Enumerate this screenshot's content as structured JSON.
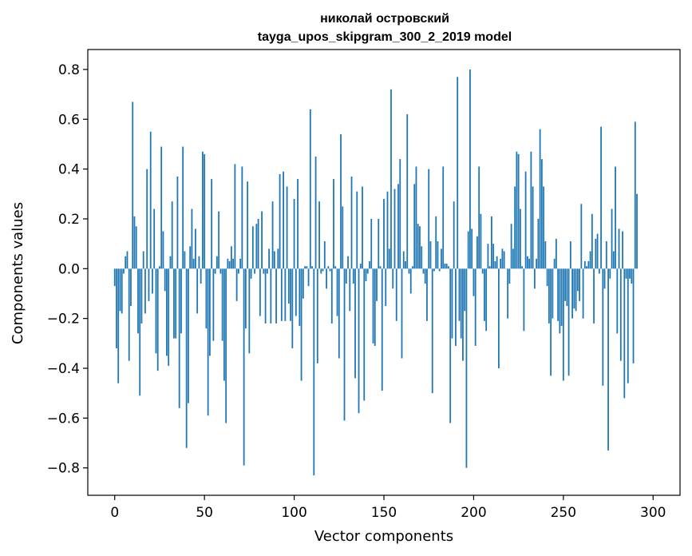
{
  "chart_data": {
    "type": "bar",
    "title_line1": "николай островский",
    "title_line2": "tayga_upos_skipgram_300_2_2019 model",
    "xlabel": "Vector components",
    "ylabel": "Components values",
    "xlim": [
      -15,
      315
    ],
    "ylim": [
      -0.91,
      0.88
    ],
    "xticks": [
      0,
      50,
      100,
      150,
      200,
      250,
      300
    ],
    "xtick_labels": [
      "0",
      "50",
      "100",
      "150",
      "200",
      "250",
      "300"
    ],
    "yticks": [
      -0.8,
      -0.6,
      -0.4,
      -0.2,
      0.0,
      0.2,
      0.4,
      0.6,
      0.8
    ],
    "ytick_labels": [
      "−0.8",
      "−0.6",
      "−0.4",
      "−0.2",
      "0.0",
      "0.2",
      "0.4",
      "0.6",
      "0.8"
    ],
    "grid": false,
    "bar_color": "#1f77b4",
    "values": [
      -0.07,
      -0.32,
      -0.46,
      -0.17,
      -0.18,
      -0.02,
      0.05,
      0.07,
      -0.37,
      -0.15,
      0.67,
      0.21,
      0.17,
      -0.26,
      -0.51,
      -0.22,
      0.07,
      -0.18,
      0.4,
      -0.13,
      0.55,
      -0.1,
      0.24,
      -0.34,
      -0.41,
      0.01,
      0.49,
      0.15,
      -0.09,
      -0.35,
      -0.39,
      0.05,
      0.27,
      -0.28,
      -0.28,
      0.37,
      -0.56,
      -0.26,
      0.49,
      0.07,
      -0.72,
      -0.54,
      0.09,
      0.24,
      0.04,
      0.16,
      -0.18,
      0.05,
      -0.06,
      0.47,
      0.46,
      -0.24,
      -0.59,
      -0.35,
      0.36,
      -0.29,
      -0.02,
      0.05,
      0.23,
      -0.02,
      -0.29,
      -0.45,
      -0.62,
      0.04,
      0.03,
      0.09,
      0.04,
      0.42,
      -0.13,
      -0.02,
      0.04,
      0.41,
      -0.79,
      -0.24,
      0.35,
      -0.34,
      -0.04,
      0.17,
      -0.02,
      0.18,
      0.2,
      -0.19,
      0.23,
      -0.02,
      -0.22,
      -0.02,
      0.08,
      -0.22,
      0.27,
      0.07,
      -0.22,
      0.08,
      0.38,
      -0.21,
      0.39,
      -0.21,
      0.33,
      -0.14,
      -0.21,
      -0.32,
      0.28,
      -0.19,
      0.36,
      -0.23,
      -0.45,
      -0.12,
      0.01,
      0.01,
      -0.07,
      0.64,
      0.01,
      -0.83,
      0.45,
      -0.38,
      0.27,
      -0.02,
      -0.01,
      0.11,
      -0.08,
      0.01,
      -0.01,
      -0.22,
      0.36,
      0.01,
      -0.19,
      -0.36,
      0.54,
      0.25,
      -0.61,
      -0.06,
      0.05,
      -0.17,
      0.37,
      -0.06,
      -0.44,
      0.31,
      -0.58,
      0.02,
      0.33,
      -0.53,
      -0.05,
      -0.02,
      0.03,
      0.2,
      -0.3,
      -0.31,
      -0.13,
      0.2,
      0.01,
      -0.49,
      0.28,
      -0.15,
      0.31,
      0.08,
      0.72,
      -0.08,
      0.32,
      -0.21,
      0.34,
      0.44,
      -0.36,
      0.07,
      0.03,
      0.62,
      -0.02,
      -0.1,
      0.01,
      0.34,
      0.41,
      0.18,
      0.17,
      0.09,
      -0.02,
      -0.06,
      -0.21,
      0.4,
      0.11,
      -0.5,
      -0.01,
      0.21,
      0.11,
      -0.01,
      0.08,
      0.41,
      0.02,
      0.02,
      0.01,
      -0.62,
      -0.28,
      0.27,
      -0.31,
      0.77,
      -0.21,
      -0.28,
      -0.37,
      -0.17,
      -0.8,
      0.15,
      0.8,
      0.16,
      -0.11,
      -0.31,
      0.13,
      0.41,
      0.22,
      -0.02,
      -0.21,
      -0.25,
      0.1,
      0.01,
      0.21,
      0.1,
      0.03,
      0.05,
      -0.4,
      0.04,
      0.08,
      0.07,
      0.0,
      -0.2,
      -0.06,
      0.18,
      0.08,
      0.33,
      0.47,
      0.46,
      0.24,
      0.01,
      -0.25,
      0.39,
      0.05,
      0.04,
      0.47,
      0.33,
      -0.08,
      0.04,
      0.2,
      0.56,
      0.44,
      0.33,
      0.11,
      -0.07,
      -0.22,
      -0.43,
      -0.2,
      0.04,
      0.12,
      -0.21,
      -0.26,
      -0.23,
      -0.45,
      -0.13,
      -0.15,
      -0.43,
      0.11,
      -0.2,
      -0.16,
      -0.17,
      -0.09,
      -0.13,
      0.26,
      -0.2,
      0.03,
      0.01,
      0.03,
      0.07,
      0.22,
      -0.22,
      0.12,
      0.14,
      -0.02,
      0.57,
      -0.47,
      -0.08,
      0.11,
      -0.73,
      -0.04,
      0.24,
      0.07,
      0.41,
      -0.26,
      0.16,
      -0.37,
      0.15,
      -0.52,
      -0.04,
      -0.46,
      -0.04,
      -0.06,
      -0.38,
      0.59,
      0.3
    ]
  }
}
